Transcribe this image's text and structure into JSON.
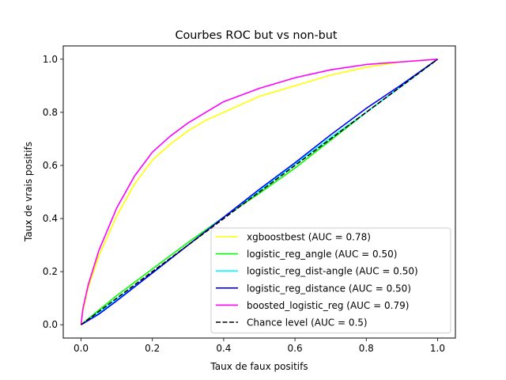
{
  "chart_data": {
    "type": "line",
    "title": "Courbes ROC but vs non-but",
    "xlabel": "Taux de faux positifs",
    "ylabel": "Taux de vrais positifs",
    "xlim": [
      -0.05,
      1.05
    ],
    "ylim": [
      -0.05,
      1.05
    ],
    "xticks": [
      "0.0",
      "0.2",
      "0.4",
      "0.6",
      "0.8",
      "1.0"
    ],
    "yticks": [
      "0.0",
      "0.2",
      "0.4",
      "0.6",
      "0.8",
      "1.0"
    ],
    "grid": false,
    "legend_position": "lower-right",
    "series": [
      {
        "name": "xgboostbest (AUC = 0.78)",
        "color": "#ffff00",
        "dash": "solid",
        "x": [
          0,
          0.005,
          0.02,
          0.05,
          0.1,
          0.15,
          0.2,
          0.25,
          0.3,
          0.35,
          0.4,
          0.5,
          0.6,
          0.7,
          0.8,
          0.9,
          1.0
        ],
        "y": [
          0,
          0.05,
          0.14,
          0.26,
          0.41,
          0.53,
          0.62,
          0.68,
          0.73,
          0.77,
          0.8,
          0.86,
          0.9,
          0.94,
          0.97,
          0.99,
          1.0
        ]
      },
      {
        "name": "logistic_reg_angle (AUC = 0.50)",
        "color": "#00ff00",
        "dash": "solid",
        "x": [
          0,
          0.05,
          0.1,
          0.2,
          0.3,
          0.4,
          0.5,
          0.6,
          0.7,
          0.8,
          0.9,
          1.0
        ],
        "y": [
          0,
          0.055,
          0.11,
          0.21,
          0.31,
          0.405,
          0.495,
          0.59,
          0.695,
          0.8,
          0.9,
          1.0
        ]
      },
      {
        "name": "logistic_reg_dist-angle (AUC = 0.50)",
        "color": "#00ffff",
        "dash": "solid",
        "x": [
          0,
          0.05,
          0.1,
          0.2,
          0.3,
          0.4,
          0.5,
          0.6,
          0.7,
          0.8,
          0.9,
          1.0
        ],
        "y": [
          0,
          0.045,
          0.095,
          0.195,
          0.3,
          0.405,
          0.505,
          0.605,
          0.705,
          0.8,
          0.9,
          1.0
        ]
      },
      {
        "name": "logistic_reg_distance (AUC = 0.50)",
        "color": "#0000ff",
        "dash": "solid",
        "x": [
          0,
          0.05,
          0.1,
          0.2,
          0.3,
          0.4,
          0.5,
          0.6,
          0.7,
          0.8,
          0.9,
          1.0
        ],
        "y": [
          0,
          0.04,
          0.09,
          0.195,
          0.3,
          0.405,
          0.51,
          0.61,
          0.715,
          0.815,
          0.905,
          1.0
        ]
      },
      {
        "name": "boosted_logistic_reg (AUC = 0.79)",
        "color": "#ff00ff",
        "dash": "solid",
        "x": [
          0,
          0.005,
          0.02,
          0.05,
          0.1,
          0.15,
          0.2,
          0.25,
          0.3,
          0.35,
          0.4,
          0.5,
          0.6,
          0.7,
          0.8,
          0.9,
          1.0
        ],
        "y": [
          0,
          0.06,
          0.15,
          0.28,
          0.44,
          0.56,
          0.65,
          0.71,
          0.76,
          0.8,
          0.84,
          0.89,
          0.93,
          0.96,
          0.98,
          0.99,
          1.0
        ]
      },
      {
        "name": "Chance level (AUC = 0.5)",
        "color": "#000000",
        "dash": "dashed",
        "x": [
          0,
          1
        ],
        "y": [
          0,
          1
        ]
      }
    ]
  }
}
